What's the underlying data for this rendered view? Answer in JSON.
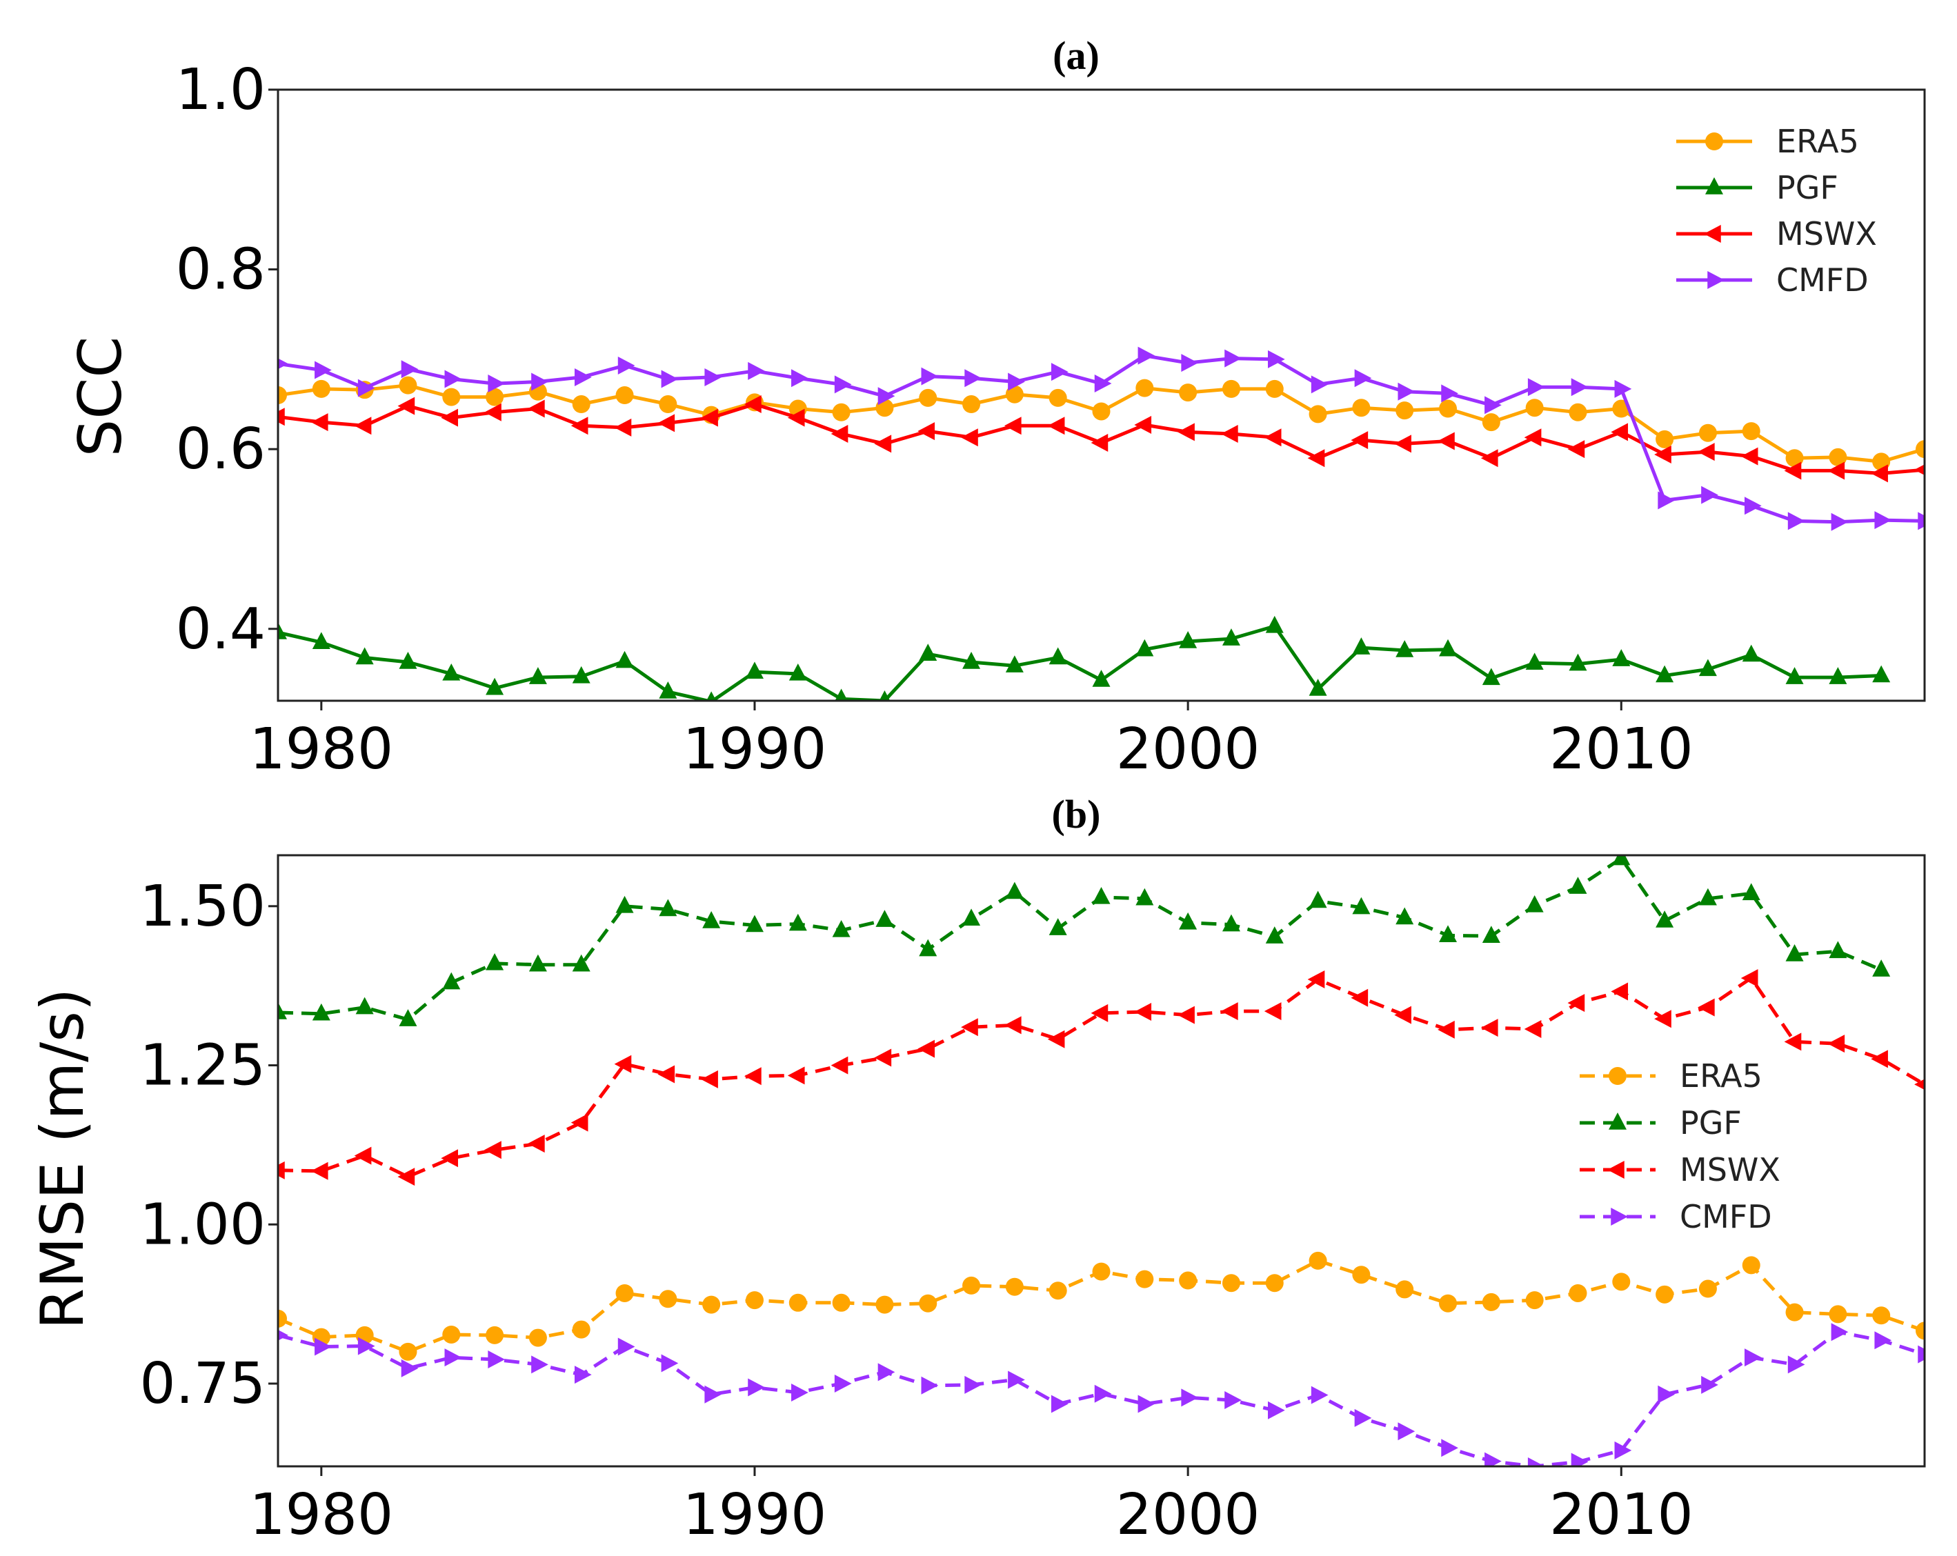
{
  "chart_data": [
    {
      "type": "line",
      "title": "(a)",
      "xlabel": "",
      "ylabel": "SCC",
      "xlim": [
        1979,
        2017
      ],
      "ylim": [
        0.32,
        1.0
      ],
      "xticks": [
        "1980",
        "1990",
        "2000",
        "2010"
      ],
      "yticks": [
        "0.4",
        "0.6",
        "0.8",
        "1.0"
      ],
      "legend_position": "top-right",
      "line_style": "solid",
      "x": [
        1979,
        1980,
        1981,
        1982,
        1983,
        1984,
        1985,
        1986,
        1987,
        1988,
        1989,
        1990,
        1991,
        1992,
        1993,
        1994,
        1995,
        1996,
        1997,
        1998,
        1999,
        2000,
        2001,
        2002,
        2003,
        2004,
        2005,
        2006,
        2007,
        2008,
        2009,
        2010,
        2011,
        2012,
        2013,
        2014,
        2015,
        2016,
        2017
      ],
      "series": [
        {
          "name": "ERA5",
          "color": "#ffa500",
          "marker": "circle",
          "values": [
            0.66,
            0.667,
            0.666,
            0.671,
            0.658,
            0.658,
            0.664,
            0.65,
            0.66,
            0.65,
            0.638,
            0.652,
            0.645,
            0.641,
            0.646,
            0.657,
            0.65,
            0.661,
            0.657,
            0.642,
            0.668,
            0.663,
            0.667,
            0.667,
            0.639,
            0.646,
            0.643,
            0.645,
            0.63,
            0.646,
            0.641,
            0.645,
            0.611,
            0.618,
            0.62,
            0.59,
            0.591,
            0.586,
            0.6
          ]
        },
        {
          "name": "PGF",
          "color": "#008000",
          "marker": "triangle-up",
          "values": [
            0.396,
            0.385,
            0.368,
            0.363,
            0.35,
            0.334,
            0.346,
            0.347,
            0.364,
            0.33,
            0.319,
            0.352,
            0.35,
            0.322,
            0.32,
            0.372,
            0.363,
            0.359,
            0.368,
            0.343,
            0.377,
            0.386,
            0.389,
            0.403,
            0.333,
            0.379,
            0.376,
            0.377,
            0.345,
            0.362,
            0.361,
            0.366,
            0.348,
            0.355,
            0.371,
            0.346,
            0.346,
            0.348,
            null
          ]
        },
        {
          "name": "MSWX",
          "color": "#ff0000",
          "marker": "triangle-left",
          "values": [
            0.636,
            0.63,
            0.626,
            0.648,
            0.635,
            0.641,
            0.645,
            0.626,
            0.624,
            0.629,
            0.635,
            0.65,
            0.635,
            0.617,
            0.606,
            0.62,
            0.613,
            0.626,
            0.626,
            0.607,
            0.627,
            0.619,
            0.617,
            0.613,
            0.59,
            0.61,
            0.606,
            0.609,
            0.59,
            0.613,
            0.6,
            0.619,
            0.594,
            0.597,
            0.592,
            0.576,
            0.576,
            0.573,
            0.577
          ]
        },
        {
          "name": "CMFD",
          "color": "#9b30ff",
          "marker": "triangle-right",
          "values": [
            0.695,
            0.688,
            0.668,
            0.689,
            0.678,
            0.673,
            0.675,
            0.68,
            0.693,
            0.678,
            0.68,
            0.687,
            0.679,
            0.672,
            0.659,
            0.681,
            0.679,
            0.675,
            0.686,
            0.673,
            0.704,
            0.696,
            0.701,
            0.7,
            0.672,
            0.679,
            0.664,
            0.662,
            0.649,
            0.669,
            0.669,
            0.667,
            0.543,
            0.549,
            0.537,
            0.52,
            0.519,
            0.521,
            0.52
          ]
        }
      ]
    },
    {
      "type": "line",
      "title": "(b)",
      "xlabel": "",
      "ylabel": "RMSE (m/s)",
      "xlim": [
        1979,
        2017
      ],
      "ylim": [
        0.62,
        1.58
      ],
      "xticks": [
        "1980",
        "1990",
        "2000",
        "2010"
      ],
      "yticks": [
        "0.75",
        "1.00",
        "1.25",
        "1.50"
      ],
      "legend_position": "center-right",
      "line_style": "dashed",
      "x": [
        1979,
        1980,
        1981,
        1982,
        1983,
        1984,
        1985,
        1986,
        1987,
        1988,
        1989,
        1990,
        1991,
        1992,
        1993,
        1994,
        1995,
        1996,
        1997,
        1998,
        1999,
        2000,
        2001,
        2002,
        2003,
        2004,
        2005,
        2006,
        2007,
        2008,
        2009,
        2010,
        2011,
        2012,
        2013,
        2014,
        2015,
        2016,
        2017
      ],
      "series": [
        {
          "name": "ERA5",
          "color": "#ffa500",
          "marker": "circle",
          "values": [
            0.852,
            0.823,
            0.826,
            0.8,
            0.827,
            0.826,
            0.822,
            0.835,
            0.892,
            0.883,
            0.874,
            0.881,
            0.877,
            0.877,
            0.874,
            0.876,
            0.904,
            0.902,
            0.896,
            0.926,
            0.914,
            0.912,
            0.908,
            0.908,
            0.943,
            0.921,
            0.898,
            0.876,
            0.878,
            0.881,
            0.892,
            0.91,
            0.89,
            0.899,
            0.936,
            0.862,
            0.859,
            0.857,
            0.833
          ]
        },
        {
          "name": "PGF",
          "color": "#008000",
          "marker": "triangle-up",
          "values": [
            1.333,
            1.331,
            1.341,
            1.322,
            1.38,
            1.41,
            1.408,
            1.408,
            1.5,
            1.495,
            1.476,
            1.47,
            1.472,
            1.462,
            1.478,
            1.432,
            1.48,
            1.522,
            1.465,
            1.514,
            1.512,
            1.474,
            1.471,
            1.452,
            1.508,
            1.498,
            1.482,
            1.454,
            1.453,
            1.501,
            1.53,
            1.575,
            1.477,
            1.512,
            1.52,
            1.424,
            1.429,
            1.4,
            null
          ]
        },
        {
          "name": "MSWX",
          "color": "#ff0000",
          "marker": "triangle-left",
          "values": [
            1.085,
            1.084,
            1.108,
            1.075,
            1.104,
            1.117,
            1.127,
            1.16,
            1.252,
            1.236,
            1.228,
            1.233,
            1.234,
            1.25,
            1.262,
            1.276,
            1.31,
            1.313,
            1.291,
            1.332,
            1.334,
            1.329,
            1.335,
            1.335,
            1.385,
            1.356,
            1.329,
            1.306,
            1.309,
            1.307,
            1.348,
            1.366,
            1.323,
            1.341,
            1.387,
            1.287,
            1.284,
            1.26,
            1.22
          ]
        },
        {
          "name": "CMFD",
          "color": "#9b30ff",
          "marker": "triangle-right",
          "values": [
            0.826,
            0.808,
            0.809,
            0.774,
            0.791,
            0.788,
            0.78,
            0.764,
            0.808,
            0.782,
            0.733,
            0.744,
            0.736,
            0.75,
            0.768,
            0.747,
            0.748,
            0.756,
            0.718,
            0.734,
            0.718,
            0.728,
            0.724,
            0.708,
            0.732,
            0.696,
            0.675,
            0.649,
            0.628,
            0.62,
            0.627,
            0.645,
            0.733,
            0.748,
            0.791,
            0.78,
            0.831,
            0.818,
            0.796
          ]
        }
      ]
    }
  ]
}
